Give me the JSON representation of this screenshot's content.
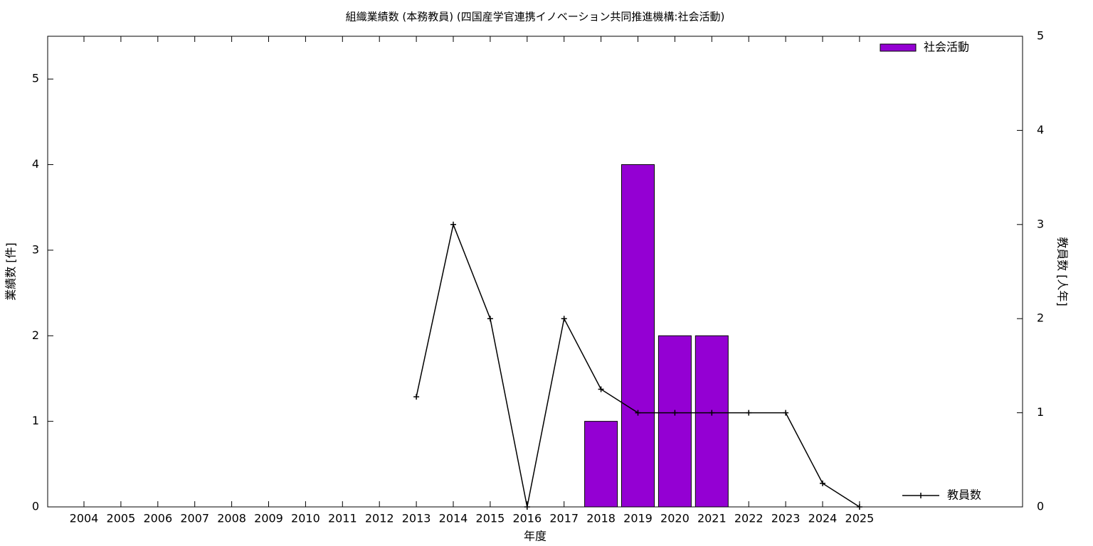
{
  "chart_data": {
    "type": "bar_line",
    "title": "組織業績数 (本務教員) (四国産学官連携イノベーション共同推進機構:社会活動)",
    "x_label": "年度",
    "y_label": "業績数 [件]",
    "y2_label": "教員数 [人年]",
    "categories": [
      "2004",
      "2005",
      "2006",
      "2007",
      "2008",
      "2009",
      "2010",
      "2011",
      "2012",
      "2013",
      "2014",
      "2015",
      "2016",
      "2017",
      "2018",
      "2019",
      "2020",
      "2021",
      "2022",
      "2023",
      "2024",
      "2025"
    ],
    "ylim": [
      0,
      5.5
    ],
    "yticks": [
      0,
      1,
      2,
      3,
      4,
      5
    ],
    "y2lim": [
      0,
      5
    ],
    "y2ticks": [
      0,
      1,
      2,
      3,
      4,
      5
    ],
    "series": [
      {
        "name": "社会活動",
        "type": "bar",
        "color": "#9400d3",
        "values": [
          null,
          null,
          null,
          null,
          null,
          null,
          null,
          null,
          null,
          null,
          null,
          null,
          null,
          null,
          1,
          4,
          2,
          2,
          null,
          null,
          null,
          null
        ]
      },
      {
        "name": "教員数",
        "type": "line",
        "axis": "y2",
        "color": "#000000",
        "values": [
          null,
          null,
          null,
          null,
          null,
          null,
          null,
          null,
          null,
          1.17,
          3,
          2,
          0,
          2,
          1.25,
          1,
          1,
          1,
          1,
          1,
          0.25,
          0
        ]
      }
    ]
  }
}
